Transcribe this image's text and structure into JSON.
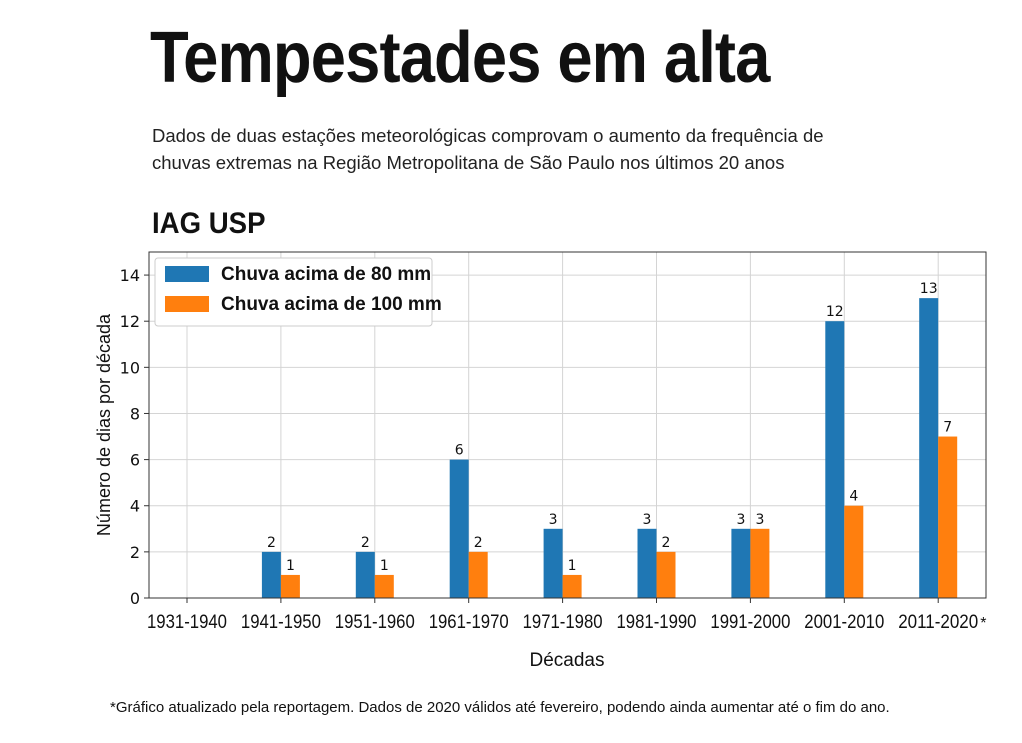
{
  "headline": "Tempestades em alta",
  "subtitle": "Dados de duas estações meteorológicas comprovam o aumento da frequência de chuvas extremas na Região Metropolitana de São Paulo nos últimos 20 anos",
  "station": "IAG USP",
  "footnote": "*Gráfico atualizado pela reportagem. Dados de 2020 válidos até fevereiro, podendo ainda aumentar até o fim do ano.",
  "chart_data": {
    "type": "bar",
    "title": "IAG USP",
    "xlabel": "Décadas",
    "ylabel": "Número de dias por década",
    "categories": [
      "1931-1940",
      "1941-1950",
      "1951-1960",
      "1961-1970",
      "1971-1980",
      "1981-1990",
      "1991-2000",
      "2001-2010",
      "2011-2020"
    ],
    "category_note": {
      "index": 8,
      "mark": "*"
    },
    "series": [
      {
        "name": "Chuva acima de 80 mm",
        "color": "#1f77b4",
        "values": [
          0,
          2,
          2,
          6,
          3,
          3,
          3,
          12,
          13
        ]
      },
      {
        "name": "Chuva acima de 100 mm",
        "color": "#ff7f0e",
        "values": [
          0,
          1,
          1,
          2,
          1,
          2,
          3,
          4,
          7
        ]
      }
    ],
    "ylim": [
      0,
      15
    ],
    "yticks": [
      0,
      2,
      4,
      6,
      8,
      10,
      12,
      14
    ],
    "grid": true,
    "legend": "top-left",
    "data_labels": true
  }
}
